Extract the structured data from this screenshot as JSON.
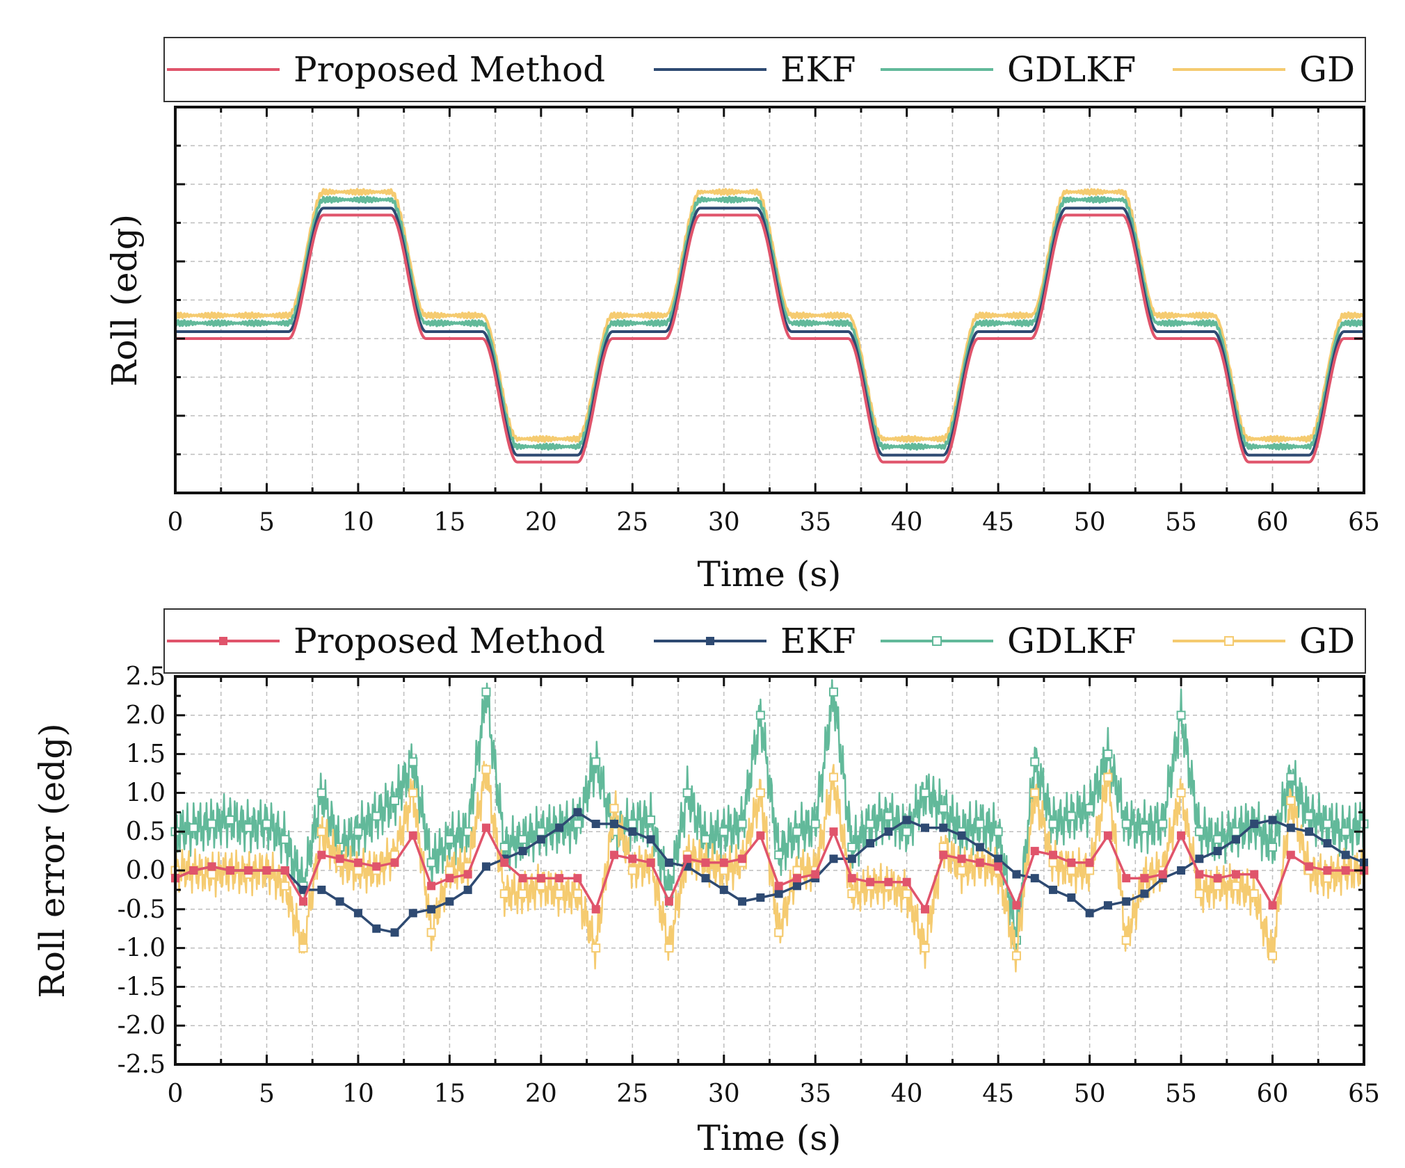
{
  "colors": {
    "proposed": "#E0546B",
    "ekf": "#2E4A72",
    "gdlkf": "#62B99A",
    "gd": "#F5CB70",
    "axis": "#111111",
    "grid": "#BDBDBD"
  },
  "chart_data": [
    {
      "type": "line",
      "title": "",
      "xlabel": "Time (s)",
      "ylabel": "Roll (edg)",
      "xlim": [
        0,
        65
      ],
      "ylim": [
        -4,
        6
      ],
      "grid": true,
      "legend_position": "top",
      "x_ticks": [
        "0",
        "5",
        "10",
        "15",
        "20",
        "25",
        "30",
        "35",
        "40",
        "45",
        "50",
        "55",
        "60",
        "65"
      ],
      "y_tick_labels_shown": false,
      "signal": {
        "description_points_x": [
          0,
          6.2,
          8.1,
          11.8,
          13.7,
          16.8,
          18.7,
          22.0,
          23.9,
          26.8,
          28.7,
          31.8,
          33.7,
          36.8,
          38.7,
          42.0,
          43.9,
          46.8,
          48.7,
          51.8,
          53.7,
          56.8,
          58.7,
          62.0,
          63.9,
          65
        ],
        "description_points_y": [
          0,
          0,
          3.2,
          3.2,
          0,
          0,
          -3.2,
          -3.2,
          0,
          0,
          3.2,
          3.2,
          0,
          0,
          -3.2,
          -3.2,
          0,
          0,
          3.2,
          3.2,
          0,
          0,
          -3.2,
          -3.2,
          0,
          0
        ]
      },
      "series": [
        {
          "name": "Proposed Method",
          "offset": 0.0
        },
        {
          "name": "EKF",
          "offset": 0.18
        },
        {
          "name": "GDLKF",
          "offset": 0.4
        },
        {
          "name": "GD",
          "offset": 0.6
        }
      ]
    },
    {
      "type": "line",
      "title": "",
      "xlabel": "Time (s)",
      "ylabel": "Roll error (edg)",
      "xlim": [
        0,
        65
      ],
      "ylim": [
        -2.5,
        2.5
      ],
      "grid": true,
      "legend_position": "top",
      "x_ticks": [
        "0",
        "5",
        "10",
        "15",
        "20",
        "25",
        "30",
        "35",
        "40",
        "45",
        "50",
        "55",
        "60",
        "65"
      ],
      "y_ticks": [
        "-2.5",
        "-2.0",
        "-1.5",
        "-1.0",
        "-0.5",
        "0.0",
        "0.5",
        "1.0",
        "1.5",
        "2.0",
        "2.5"
      ],
      "series": [
        {
          "name": "Proposed Method",
          "marker": "filled-square",
          "x": [
            0,
            1,
            2,
            3,
            4,
            5,
            6,
            7,
            8,
            9,
            10,
            11,
            12,
            13,
            14,
            15,
            16,
            17,
            18,
            19,
            20,
            21,
            22,
            23,
            24,
            25,
            26,
            27,
            28,
            29,
            30,
            31,
            32,
            33,
            34,
            35,
            36,
            37,
            38,
            39,
            40,
            41,
            42,
            43,
            44,
            45,
            46,
            47,
            48,
            49,
            50,
            51,
            52,
            53,
            54,
            55,
            56,
            57,
            58,
            59,
            60,
            61,
            62,
            63,
            64,
            65
          ],
          "y": [
            -0.1,
            0.0,
            0.05,
            0.0,
            0.0,
            0.0,
            0.0,
            -0.4,
            0.2,
            0.15,
            0.1,
            0.05,
            0.1,
            0.45,
            -0.2,
            -0.1,
            -0.05,
            0.55,
            0.1,
            -0.1,
            -0.1,
            -0.1,
            -0.1,
            -0.5,
            0.2,
            0.15,
            0.1,
            -0.4,
            0.15,
            0.1,
            0.1,
            0.15,
            0.45,
            -0.2,
            -0.1,
            -0.05,
            0.5,
            -0.1,
            -0.15,
            -0.15,
            -0.15,
            -0.5,
            0.2,
            0.15,
            0.1,
            0.05,
            -0.45,
            0.25,
            0.2,
            0.1,
            0.1,
            0.45,
            -0.1,
            -0.1,
            -0.05,
            0.45,
            -0.05,
            -0.1,
            -0.05,
            -0.05,
            -0.45,
            0.2,
            0.05,
            0.0,
            0.0,
            0.0
          ]
        },
        {
          "name": "EKF",
          "marker": "filled-square",
          "x": [
            0,
            1,
            2,
            3,
            4,
            5,
            6,
            7,
            8,
            9,
            10,
            11,
            12,
            13,
            14,
            15,
            16,
            17,
            18,
            19,
            20,
            21,
            22,
            23,
            24,
            25,
            26,
            27,
            28,
            29,
            30,
            31,
            32,
            33,
            34,
            35,
            36,
            37,
            38,
            39,
            40,
            41,
            42,
            43,
            44,
            45,
            46,
            47,
            48,
            49,
            50,
            51,
            52,
            53,
            54,
            55,
            56,
            57,
            58,
            59,
            60,
            61,
            62,
            63,
            64,
            65
          ],
          "y": [
            -0.1,
            0.0,
            0.05,
            0.0,
            0.0,
            0.0,
            0.0,
            -0.25,
            -0.25,
            -0.4,
            -0.55,
            -0.75,
            -0.8,
            -0.55,
            -0.5,
            -0.4,
            -0.25,
            0.05,
            0.15,
            0.25,
            0.4,
            0.55,
            0.75,
            0.6,
            0.6,
            0.5,
            0.4,
            0.1,
            0.05,
            -0.1,
            -0.25,
            -0.4,
            -0.35,
            -0.3,
            -0.2,
            -0.1,
            0.15,
            0.15,
            0.35,
            0.5,
            0.65,
            0.55,
            0.55,
            0.45,
            0.3,
            0.15,
            -0.05,
            -0.1,
            -0.25,
            -0.35,
            -0.55,
            -0.45,
            -0.4,
            -0.3,
            -0.1,
            0.0,
            0.15,
            0.25,
            0.4,
            0.6,
            0.65,
            0.55,
            0.5,
            0.35,
            0.2,
            0.1
          ]
        },
        {
          "name": "GDLKF",
          "marker": "open-square",
          "x": [
            0,
            1,
            2,
            3,
            4,
            5,
            6,
            7,
            8,
            9,
            10,
            11,
            12,
            13,
            14,
            15,
            16,
            17,
            18,
            19,
            20,
            21,
            22,
            23,
            24,
            25,
            26,
            27,
            28,
            29,
            30,
            31,
            32,
            33,
            34,
            35,
            36,
            37,
            38,
            39,
            40,
            41,
            42,
            43,
            44,
            45,
            46,
            47,
            48,
            49,
            50,
            51,
            52,
            53,
            54,
            55,
            56,
            57,
            58,
            59,
            60,
            61,
            62,
            63,
            64,
            65
          ],
          "y": [
            0.5,
            0.55,
            0.6,
            0.65,
            0.55,
            0.6,
            0.4,
            -0.2,
            1.0,
            0.3,
            0.5,
            0.7,
            0.9,
            1.4,
            0.1,
            0.4,
            0.5,
            2.3,
            0.3,
            0.4,
            0.5,
            0.55,
            0.6,
            1.4,
            0.5,
            0.6,
            0.65,
            -0.3,
            1.0,
            0.4,
            0.5,
            0.6,
            2.0,
            0.2,
            0.5,
            0.6,
            2.3,
            0.3,
            0.6,
            0.7,
            0.5,
            1.0,
            0.8,
            0.5,
            0.6,
            0.5,
            -0.9,
            1.4,
            0.6,
            0.7,
            0.8,
            1.5,
            0.6,
            0.55,
            0.6,
            2.0,
            0.5,
            0.4,
            0.5,
            0.6,
            0.3,
            1.2,
            0.7,
            0.6,
            0.5,
            0.6
          ]
        },
        {
          "name": "GD",
          "marker": "open-square",
          "x": [
            0,
            1,
            2,
            3,
            4,
            5,
            6,
            7,
            8,
            9,
            10,
            11,
            12,
            13,
            14,
            15,
            16,
            17,
            18,
            19,
            20,
            21,
            22,
            23,
            24,
            25,
            26,
            27,
            28,
            29,
            30,
            31,
            32,
            33,
            34,
            35,
            36,
            37,
            38,
            39,
            40,
            41,
            42,
            43,
            44,
            45,
            46,
            47,
            48,
            49,
            50,
            51,
            52,
            53,
            54,
            55,
            56,
            57,
            58,
            59,
            60,
            61,
            62,
            63,
            64,
            65
          ],
          "y": [
            0.0,
            0.0,
            -0.05,
            0.0,
            -0.05,
            0.0,
            -0.2,
            -1.0,
            0.5,
            0.1,
            0.0,
            0.0,
            0.2,
            1.0,
            -0.8,
            0.0,
            0.05,
            1.3,
            -0.3,
            -0.3,
            -0.2,
            -0.3,
            -0.3,
            -1.0,
            0.8,
            0.0,
            0.1,
            -1.0,
            0.2,
            0.1,
            0.0,
            0.1,
            1.0,
            -0.8,
            0.0,
            0.0,
            1.2,
            -0.3,
            -0.2,
            -0.2,
            -0.3,
            -1.0,
            0.3,
            0.0,
            0.1,
            0.0,
            -1.1,
            1.0,
            0.1,
            0.0,
            0.0,
            1.2,
            -0.9,
            -0.1,
            0.0,
            1.0,
            -0.3,
            -0.2,
            -0.2,
            -0.3,
            -1.1,
            0.9,
            0.0,
            -0.1,
            0.0,
            0.0
          ]
        }
      ]
    }
  ],
  "legend": {
    "items": [
      "Proposed Method",
      "EKF",
      "GDLKF",
      "GD"
    ]
  }
}
